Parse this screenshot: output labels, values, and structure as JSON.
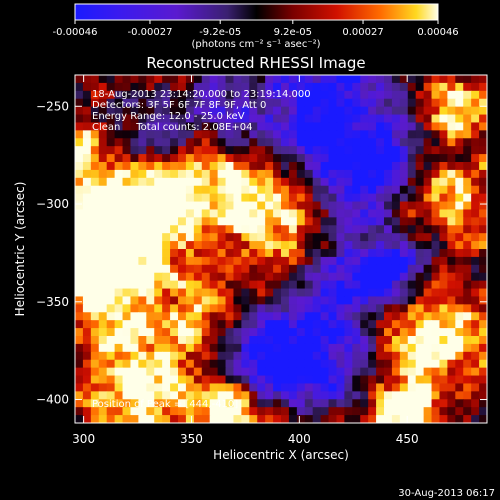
{
  "chart_data": {
    "type": "heatmap",
    "title": "Reconstructed RHESSI Image",
    "xlabel": "Heliocentric X (arcsec)",
    "ylabel": "Heliocentric Y (arcsec)",
    "xlim": [
      296,
      487
    ],
    "ylim": [
      -412,
      -234
    ],
    "x_ticks": [
      300,
      350,
      400,
      450
    ],
    "y_ticks": [
      -250,
      -300,
      -350,
      -400
    ],
    "colorbar": {
      "min": -0.00046,
      "max": 0.00046,
      "tick_values": [
        -0.00046,
        -0.00027,
        -9.2e-05,
        9.2e-05,
        0.00027,
        0.00046
      ],
      "tick_labels": [
        "-0.00046",
        "-0.00027",
        "-9.2e-05",
        "9.2e-05",
        "0.00027",
        "0.00046"
      ],
      "unit": "(photons cm⁻² s⁻¹ asec⁻²)",
      "colors": [
        "#1a1aff",
        "#5a1ad0",
        "#4b2a8a",
        "#000000",
        "#7a0000",
        "#d01000",
        "#ff6a00",
        "#ffd820",
        "#ffffe8"
      ]
    },
    "annotations": {
      "time_range": "18-Aug-2013 23:14:20.000 to 23:19:14.000",
      "detectors": "Detectors: 3F 5F 6F 7F 8F 9F, Att 0",
      "energy_range": "Energy Range: 12.0 - 25.0 keV",
      "clean_counts": "Clean     Total counts: 2.08E+04",
      "peak_position": "Position of Peak = [444,-410]"
    },
    "peak": [
      444,
      -410
    ]
  },
  "footer": {
    "timestamp": "30-Aug-2013 06:17"
  }
}
